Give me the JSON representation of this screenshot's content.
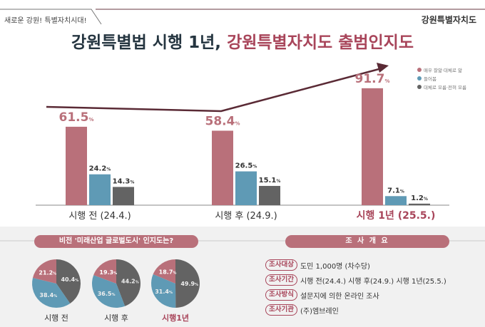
{
  "header": {
    "tagline": "새로운 강원! 특별자치시대!",
    "logo": "강원특별자치도",
    "title_dark": "강원특별법 시행 1년,",
    "title_accent": "강원특별자치도 출범인지도"
  },
  "colors": {
    "pink": "#b9707a",
    "blue": "#5f9ab5",
    "gray": "#636363",
    "accent": "#a8455a",
    "dark": "#253540"
  },
  "chart_data": [
    {
      "type": "bar",
      "categories": [
        "시행 전 (24.4.)",
        "시행 후 (24.9.)",
        "시행 1년 (25.5.)"
      ],
      "series": [
        {
          "name": "매우 잘앎·대체로 앎",
          "values": [
            61.5,
            58.4,
            91.7
          ]
        },
        {
          "name": "들어봄",
          "values": [
            24.2,
            26.5,
            7.1
          ]
        },
        {
          "name": "대체로 모름·전혀 모름",
          "values": [
            14.3,
            15.1,
            1.2
          ]
        }
      ],
      "unit": "%",
      "ylim": [
        0,
        100
      ],
      "legend": "top-right",
      "grid": false
    },
    {
      "type": "pie",
      "title": "비전 '미래산업 글로벌도시' 인지도는?",
      "pies": [
        {
          "label": "시행 전",
          "values": [
            21.2,
            38.4,
            40.4
          ]
        },
        {
          "label": "시행 후",
          "values": [
            19.3,
            36.5,
            44.2
          ]
        },
        {
          "label": "시행1년",
          "values": [
            18.7,
            31.4,
            49.9
          ]
        }
      ],
      "unit": "%"
    }
  ],
  "survey": {
    "title": "조 사 개 요",
    "rows": [
      {
        "tag": "조사대상",
        "text": "도민 1,000명 (차수당)"
      },
      {
        "tag": "조사기간",
        "text": "시행 전(24.4.) 시행 후(24.9.) 시행 1년(25.5.)"
      },
      {
        "tag": "조사방식",
        "text": "설문지에 의한 온라인 조사"
      },
      {
        "tag": "조사기관",
        "text": "(주)엠브레인"
      }
    ]
  }
}
